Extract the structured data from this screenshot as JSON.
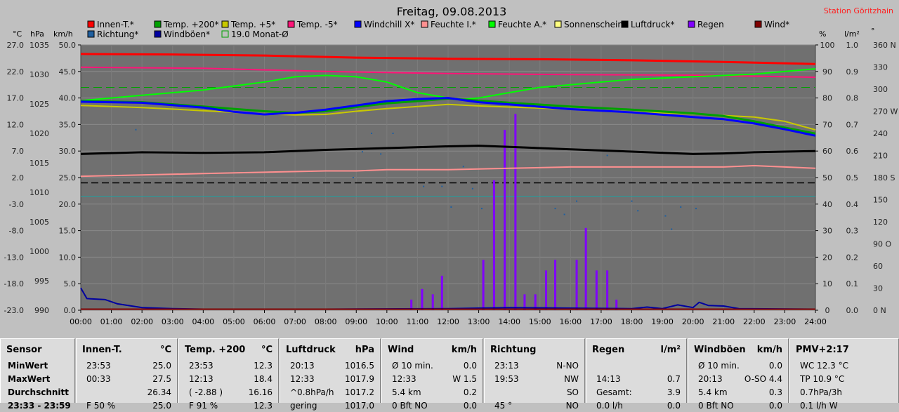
{
  "header": {
    "title": "Freitag, 09.08.2013",
    "station": "Station Göritzhain"
  },
  "legend": [
    {
      "label": "Innen-T.*",
      "color": "#ff0000"
    },
    {
      "label": "Temp. +200*",
      "color": "#00a000"
    },
    {
      "label": "Temp. +5*",
      "color": "#c8c800"
    },
    {
      "label": "Temp. -5*",
      "color": "#ff1478"
    },
    {
      "label": "Windchill X*",
      "color": "#0000ff"
    },
    {
      "label": "Feuchte I.*",
      "color": "#ff9090"
    },
    {
      "label": "Feuchte A.*",
      "color": "#00ff00"
    },
    {
      "label": "Sonnenschein",
      "color": "#ffff80"
    },
    {
      "label": "Luftdruck*",
      "color": "#000000"
    },
    {
      "label": "Regen",
      "color": "#8000ff"
    },
    {
      "label": "Wind*",
      "color": "#800000"
    },
    {
      "label": "Richtung*",
      "color": "#2060a0"
    },
    {
      "label": "Windböen*",
      "color": "#0000a0"
    },
    {
      "label": "19.0 Monat-Ø",
      "color": "#00a000"
    }
  ],
  "axis_labels": {
    "temp_unit": "°C",
    "pressure_unit": "hPa",
    "wind_unit": "km/h",
    "humidity_unit": "%",
    "rain_unit": "l/m²",
    "direction_unit": "°"
  },
  "chart_data": {
    "type": "line",
    "title": "Freitag, 09.08.2013",
    "x": [
      "00:00",
      "01:00",
      "02:00",
      "03:00",
      "04:00",
      "05:00",
      "06:00",
      "07:00",
      "08:00",
      "09:00",
      "10:00",
      "11:00",
      "12:00",
      "13:00",
      "14:00",
      "15:00",
      "16:00",
      "17:00",
      "18:00",
      "19:00",
      "20:00",
      "21:00",
      "22:00",
      "23:00",
      "24:00"
    ],
    "axes": {
      "temp": {
        "unit": "°C",
        "range": [
          -23,
          27
        ],
        "ticks": [
          "27.0",
          "22.0",
          "17.0",
          "12.0",
          "7.0",
          "2.0",
          "-3.0",
          "-8.0",
          "-13.0",
          "-18.0",
          "-23.0"
        ]
      },
      "pressure": {
        "unit": "hPa",
        "range": [
          990,
          1035
        ],
        "ticks": [
          "1035",
          "1030",
          "1025",
          "1020",
          "1015",
          "1010",
          "1005",
          "1000",
          "995",
          "990"
        ]
      },
      "wind": {
        "unit": "km/h",
        "range": [
          0,
          50
        ],
        "ticks": [
          "50.0",
          "45.0",
          "40.0",
          "35.0",
          "30.0",
          "25.0",
          "20.0",
          "15.0",
          "10.0",
          "5.0",
          "0.0"
        ]
      },
      "humidity": {
        "unit": "%",
        "range": [
          0,
          100
        ],
        "ticks": [
          "100",
          "90",
          "80",
          "70",
          "60",
          "50",
          "40",
          "30",
          "20",
          "10",
          "0"
        ]
      },
      "rain": {
        "unit": "l/m²",
        "range": [
          0,
          1
        ],
        "ticks": [
          "1.0",
          "0.9",
          "0.8",
          "0.7",
          "0.6",
          "0.5",
          "0.4",
          "0.3",
          "0.2",
          "0.1",
          "0.0"
        ]
      },
      "direction": {
        "unit": "°",
        "range": [
          0,
          360
        ],
        "ticks": [
          "360 N",
          "330",
          "300",
          "270 W",
          "240",
          "210",
          "180 S",
          "150",
          "120",
          "90 O",
          "60",
          "30",
          "0 N"
        ]
      }
    },
    "series": [
      {
        "name": "Innen-T.*",
        "axis": "temp",
        "color": "#ff0000",
        "width": 3,
        "points": [
          [
            0,
            25.3
          ],
          [
            3,
            25.2
          ],
          [
            6,
            25.0
          ],
          [
            9,
            24.6
          ],
          [
            12,
            24.4
          ],
          [
            15,
            24.3
          ],
          [
            18,
            24.1
          ],
          [
            21,
            23.8
          ],
          [
            24,
            23.4
          ]
        ]
      },
      {
        "name": "Temp. -5*",
        "axis": "temp",
        "color": "#ff1478",
        "width": 2,
        "points": [
          [
            0,
            22.8
          ],
          [
            4,
            22.6
          ],
          [
            8,
            22.0
          ],
          [
            12,
            21.6
          ],
          [
            16,
            21.4
          ],
          [
            20,
            21.3
          ],
          [
            24,
            20.9
          ]
        ]
      },
      {
        "name": "Feuchte A.*",
        "axis": "humidity",
        "color": "#00ff00",
        "width": 2,
        "points": [
          [
            0,
            79
          ],
          [
            2,
            81
          ],
          [
            4,
            83
          ],
          [
            6,
            86
          ],
          [
            7,
            88
          ],
          [
            8,
            88.5
          ],
          [
            9,
            88
          ],
          [
            10,
            86
          ],
          [
            11,
            82
          ],
          [
            12,
            80
          ],
          [
            12.5,
            79.5
          ],
          [
            13,
            80
          ],
          [
            14,
            82
          ],
          [
            15,
            84
          ],
          [
            16,
            85
          ],
          [
            18,
            87
          ],
          [
            20,
            88
          ],
          [
            22,
            89
          ],
          [
            24,
            91
          ]
        ]
      },
      {
        "name": "Temp. +5*",
        "axis": "temp",
        "color": "#c8c800",
        "width": 2,
        "points": [
          [
            0,
            15.6
          ],
          [
            2,
            15.2
          ],
          [
            4,
            14.6
          ],
          [
            6,
            14.0
          ],
          [
            7,
            13.8
          ],
          [
            8,
            13.9
          ],
          [
            9,
            14.5
          ],
          [
            10,
            15.0
          ],
          [
            11,
            15.4
          ],
          [
            12,
            15.8
          ],
          [
            13,
            15.5
          ],
          [
            14,
            15.3
          ],
          [
            16,
            14.9
          ],
          [
            18,
            14.4
          ],
          [
            20,
            14.0
          ],
          [
            22,
            13.4
          ],
          [
            23,
            12.6
          ],
          [
            24,
            11.0
          ]
        ]
      },
      {
        "name": "Temp. +200*",
        "axis": "temp",
        "color": "#00a000",
        "width": 3,
        "points": [
          [
            0,
            16.4
          ],
          [
            2,
            16.2
          ],
          [
            4,
            15.4
          ],
          [
            6,
            14.5
          ],
          [
            7,
            14.2
          ],
          [
            8,
            14.5
          ],
          [
            9,
            15.3
          ],
          [
            10,
            16.0
          ],
          [
            11,
            16.4
          ],
          [
            12,
            16.9
          ],
          [
            13,
            16.5
          ],
          [
            14,
            16.1
          ],
          [
            16,
            15.4
          ],
          [
            18,
            14.8
          ],
          [
            20,
            14.1
          ],
          [
            21,
            13.6
          ],
          [
            22,
            12.6
          ],
          [
            23,
            11.4
          ],
          [
            24,
            10.3
          ]
        ]
      },
      {
        "name": "Windchill X*",
        "axis": "temp",
        "color": "#0000ff",
        "width": 3,
        "points": [
          [
            0,
            16.3
          ],
          [
            2,
            16.1
          ],
          [
            4,
            15.2
          ],
          [
            5,
            14.4
          ],
          [
            6,
            13.9
          ],
          [
            7,
            14.2
          ],
          [
            8,
            14.8
          ],
          [
            9,
            15.6
          ],
          [
            10,
            16.4
          ],
          [
            11,
            16.8
          ],
          [
            12,
            17.0
          ],
          [
            13,
            16.2
          ],
          [
            14,
            15.8
          ],
          [
            16,
            14.9
          ],
          [
            18,
            14.3
          ],
          [
            20,
            13.4
          ],
          [
            21,
            13.0
          ],
          [
            22,
            12.2
          ],
          [
            23,
            11.1
          ],
          [
            24,
            9.9
          ]
        ]
      },
      {
        "name": "Luftdruck*",
        "axis": "pressure",
        "color": "#000000",
        "width": 3,
        "points": [
          [
            0,
            1016.5
          ],
          [
            2,
            1016.8
          ],
          [
            4,
            1016.7
          ],
          [
            6,
            1016.8
          ],
          [
            8,
            1017.2
          ],
          [
            10,
            1017.5
          ],
          [
            12,
            1017.8
          ],
          [
            13,
            1017.9
          ],
          [
            14,
            1017.7
          ],
          [
            16,
            1017.3
          ],
          [
            18,
            1016.9
          ],
          [
            20,
            1016.5
          ],
          [
            21,
            1016.6
          ],
          [
            22,
            1016.8
          ],
          [
            23,
            1016.9
          ],
          [
            24,
            1017.0
          ]
        ]
      },
      {
        "name": "Feuchte I.*",
        "axis": "humidity",
        "color": "#ff9090",
        "width": 2,
        "points": [
          [
            0,
            50.5
          ],
          [
            2,
            51
          ],
          [
            4,
            51.5
          ],
          [
            6,
            52
          ],
          [
            8,
            52.5
          ],
          [
            9,
            52.5
          ],
          [
            10,
            53
          ],
          [
            12,
            53
          ],
          [
            14,
            53.5
          ],
          [
            16,
            54
          ],
          [
            18,
            54
          ],
          [
            20,
            54
          ],
          [
            21,
            54
          ],
          [
            22,
            54.5
          ],
          [
            23,
            54
          ],
          [
            24,
            53.5
          ]
        ]
      },
      {
        "name": "Windböen*",
        "axis": "wind",
        "color": "#0000a0",
        "width": 2,
        "points": [
          [
            0,
            4.2
          ],
          [
            0.2,
            2.2
          ],
          [
            0.8,
            2.0
          ],
          [
            1.2,
            1.2
          ],
          [
            2,
            0.5
          ],
          [
            3,
            0.3
          ],
          [
            4,
            0.2
          ],
          [
            8,
            0.2
          ],
          [
            12,
            0.3
          ],
          [
            14,
            0.5
          ],
          [
            16,
            0.4
          ],
          [
            18,
            0.3
          ],
          [
            18.5,
            0.6
          ],
          [
            19,
            0.3
          ],
          [
            19.5,
            1.0
          ],
          [
            20,
            0.5
          ],
          [
            20.2,
            1.5
          ],
          [
            20.5,
            0.9
          ],
          [
            21,
            0.8
          ],
          [
            21.5,
            0.3
          ],
          [
            24,
            0.2
          ]
        ]
      },
      {
        "name": "Wind*",
        "axis": "wind",
        "color": "#800000",
        "width": 2,
        "points": [
          [
            0,
            0.2
          ],
          [
            24,
            0.2
          ]
        ]
      }
    ],
    "reference_lines": [
      {
        "name": "19.0 Monat-Ø",
        "axis": "temp",
        "value": 19.0,
        "color": "#00a000",
        "dash": true
      },
      {
        "axis": "humidity",
        "value": 48,
        "color": "#000000",
        "dash": true
      },
      {
        "axis": "humidity",
        "value": 43,
        "color": "#20a0a0",
        "dash": false
      }
    ],
    "rain_bars": {
      "axis": "rain",
      "color": "#8000ff",
      "bars": [
        [
          10.8,
          0.04
        ],
        [
          11.15,
          0.08
        ],
        [
          11.5,
          0.06
        ],
        [
          11.8,
          0.13
        ],
        [
          13.15,
          0.19
        ],
        [
          13.5,
          0.49
        ],
        [
          13.85,
          0.68
        ],
        [
          14.2,
          0.74
        ],
        [
          14.5,
          0.06
        ],
        [
          14.85,
          0.06
        ],
        [
          15.2,
          0.15
        ],
        [
          15.5,
          0.19
        ],
        [
          16.2,
          0.19
        ],
        [
          16.5,
          0.31
        ],
        [
          16.85,
          0.15
        ],
        [
          17.2,
          0.15
        ],
        [
          17.5,
          0.04
        ]
      ]
    },
    "direction_points": {
      "axis": "direction",
      "color": "#2060a0",
      "points": [
        [
          1.8,
          245
        ],
        [
          8.9,
          180
        ],
        [
          9.2,
          215
        ],
        [
          9.5,
          240
        ],
        [
          9.8,
          212
        ],
        [
          10.2,
          240
        ],
        [
          11.2,
          168
        ],
        [
          11.8,
          168
        ],
        [
          12.1,
          140
        ],
        [
          12.5,
          195
        ],
        [
          12.8,
          165
        ],
        [
          13.1,
          138
        ],
        [
          15.5,
          138
        ],
        [
          15.8,
          130
        ],
        [
          16.2,
          148
        ],
        [
          17.2,
          210
        ],
        [
          18.0,
          148
        ],
        [
          18.2,
          135
        ],
        [
          19.1,
          128
        ],
        [
          19.3,
          110
        ],
        [
          19.6,
          140
        ],
        [
          20.1,
          138
        ]
      ]
    }
  },
  "table": [
    {
      "title": "Sensor",
      "unit": "",
      "rows": [
        {
          "a": "MinWert",
          "b": "",
          "bold": true
        },
        {
          "a": "MaxWert",
          "b": "",
          "bold": true
        },
        {
          "a": "Durchschnitt",
          "b": "",
          "bold": true
        },
        {
          "a": "23:33 - 23:59",
          "b": "",
          "bold": true
        }
      ]
    },
    {
      "title": "Innen-T.",
      "unit": "°C",
      "rows": [
        {
          "a": "23:53",
          "b": "25.0"
        },
        {
          "a": "00:33",
          "b": "27.5"
        },
        {
          "a": "",
          "b": "26.34"
        },
        {
          "a": "F 50 %",
          "b": "25.0"
        }
      ]
    },
    {
      "title": "Temp. +200",
      "unit": "°C",
      "rows": [
        {
          "a": "23:53",
          "b": "12.3"
        },
        {
          "a": "12:13",
          "b": "18.4"
        },
        {
          "a": "( -2.88 )",
          "b": "16.16"
        },
        {
          "a": "F 91 %",
          "b": "12.3"
        }
      ]
    },
    {
      "title": "Luftdruck",
      "unit": "hPa",
      "rows": [
        {
          "a": "20:13",
          "b": "1016.5"
        },
        {
          "a": "12:33",
          "b": "1017.9"
        },
        {
          "a": "^0.8hPa/h",
          "b": "1017.2"
        },
        {
          "a": "gering",
          "b": "1017.0"
        }
      ]
    },
    {
      "title": "Wind",
      "unit": "km/h",
      "rows": [
        {
          "a": "Ø 10 min.",
          "b": "0.0"
        },
        {
          "a": "12:33",
          "b": "W 1.5"
        },
        {
          "a": "5.4 km",
          "b": "0.2"
        },
        {
          "a": "0 Bft NO",
          "b": "0.0"
        }
      ]
    },
    {
      "title": "Richtung",
      "unit": "",
      "rows": [
        {
          "a": "23:13",
          "b": "N-NO"
        },
        {
          "a": "19:53",
          "b": "NW"
        },
        {
          "a": "",
          "b": "SO"
        },
        {
          "a": "45 °",
          "b": "NO"
        }
      ]
    },
    {
      "title": "Regen",
      "unit": "l/m²",
      "rows": [
        {
          "a": "",
          "b": ""
        },
        {
          "a": "14:13",
          "b": "0.7"
        },
        {
          "a": "Gesamt:",
          "b": "3.9"
        },
        {
          "a": "0.0 l/h",
          "b": "0.0"
        }
      ]
    },
    {
      "title": "Windböen",
      "unit": "km/h",
      "rows": [
        {
          "a": "Ø 10 min.",
          "b": "0.0"
        },
        {
          "a": "20:13",
          "b": "O-SO 4.4"
        },
        {
          "a": "5.4 km",
          "b": "0.3"
        },
        {
          "a": "0 Bft NO",
          "b": "0.0"
        }
      ]
    },
    {
      "title": "PMV+2:17",
      "unit": "",
      "rows": [
        {
          "a": "WC 12.3 °C",
          "b": ""
        },
        {
          "a": "TP 10.9 °C",
          "b": ""
        },
        {
          "a": "0.7hPa/3h",
          "b": ""
        },
        {
          "a": "0.1 l/h W",
          "b": ""
        }
      ]
    }
  ]
}
